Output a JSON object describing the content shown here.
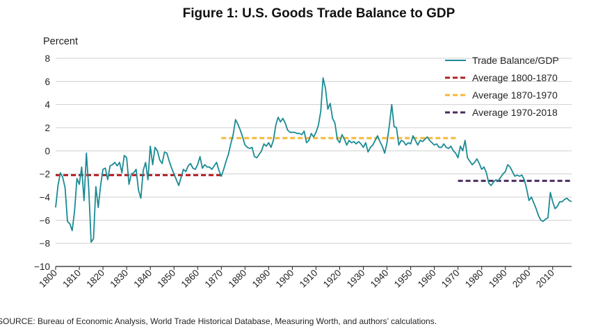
{
  "chart_data": {
    "type": "line",
    "title": "Figure 1: U.S. Goods Trade Balance to GDP",
    "ylabel": "Percent",
    "xlabel": "",
    "ylim": [
      -10,
      8
    ],
    "xlim": [
      1800,
      2018
    ],
    "y_ticks": [
      "8",
      "6",
      "4",
      "2",
      "0",
      "−2",
      "−4",
      "−6",
      "−8",
      "−10"
    ],
    "y_tick_values": [
      8,
      6,
      4,
      2,
      0,
      -2,
      -4,
      -6,
      -8,
      -10
    ],
    "x_ticks": [
      "1800",
      "1810",
      "1820",
      "1830",
      "1840",
      "1850",
      "1860",
      "1870",
      "1880",
      "1890",
      "1900",
      "1910",
      "1920",
      "1930",
      "1940",
      "1950",
      "1960",
      "1970",
      "1980",
      "1990",
      "2000",
      "2010"
    ],
    "x_tick_values": [
      1800,
      1810,
      1820,
      1830,
      1840,
      1850,
      1860,
      1870,
      1880,
      1890,
      1900,
      1910,
      1920,
      1930,
      1940,
      1950,
      1960,
      1970,
      1980,
      1990,
      2000,
      2010
    ],
    "grid": "horizontal",
    "legend_position": "top-right",
    "series": [
      {
        "name": "Trade Balance/GDP",
        "color": "#1a8a93",
        "style": "solid",
        "points": [
          [
            1800,
            -4.9
          ],
          [
            1801,
            -3.0
          ],
          [
            1802,
            -1.9
          ],
          [
            1803,
            -2.3
          ],
          [
            1804,
            -3.2
          ],
          [
            1805,
            -6.1
          ],
          [
            1806,
            -6.3
          ],
          [
            1807,
            -6.9
          ],
          [
            1808,
            -5.2
          ],
          [
            1809,
            -2.4
          ],
          [
            1810,
            -2.9
          ],
          [
            1811,
            -1.4
          ],
          [
            1812,
            -4.3
          ],
          [
            1813,
            -0.2
          ],
          [
            1814,
            -3.3
          ],
          [
            1815,
            -7.9
          ],
          [
            1816,
            -7.6
          ],
          [
            1817,
            -3.1
          ],
          [
            1818,
            -4.9
          ],
          [
            1819,
            -3.0
          ],
          [
            1820,
            -1.6
          ],
          [
            1821,
            -1.5
          ],
          [
            1822,
            -2.5
          ],
          [
            1823,
            -1.3
          ],
          [
            1824,
            -1.2
          ],
          [
            1825,
            -1.0
          ],
          [
            1826,
            -1.3
          ],
          [
            1827,
            -1.0
          ],
          [
            1828,
            -1.9
          ],
          [
            1829,
            -0.4
          ],
          [
            1830,
            -0.6
          ],
          [
            1831,
            -2.9
          ],
          [
            1832,
            -2.0
          ],
          [
            1833,
            -1.9
          ],
          [
            1834,
            -1.6
          ],
          [
            1835,
            -3.4
          ],
          [
            1836,
            -4.1
          ],
          [
            1837,
            -1.7
          ],
          [
            1838,
            -1.0
          ],
          [
            1839,
            -2.5
          ],
          [
            1840,
            0.4
          ],
          [
            1841,
            -1.2
          ],
          [
            1842,
            0.3
          ],
          [
            1843,
            0.0
          ],
          [
            1844,
            -0.8
          ],
          [
            1845,
            -1.1
          ],
          [
            1846,
            -0.1
          ],
          [
            1847,
            -0.2
          ],
          [
            1848,
            -0.9
          ],
          [
            1849,
            -1.5
          ],
          [
            1850,
            -2.0
          ],
          [
            1851,
            -2.5
          ],
          [
            1852,
            -3.0
          ],
          [
            1853,
            -2.3
          ],
          [
            1854,
            -1.6
          ],
          [
            1855,
            -1.8
          ],
          [
            1856,
            -1.3
          ],
          [
            1857,
            -1.1
          ],
          [
            1858,
            -1.5
          ],
          [
            1859,
            -1.6
          ],
          [
            1860,
            -1.2
          ],
          [
            1861,
            -0.5
          ],
          [
            1862,
            -1.5
          ],
          [
            1863,
            -1.2
          ],
          [
            1864,
            -1.4
          ],
          [
            1865,
            -1.4
          ],
          [
            1866,
            -1.6
          ],
          [
            1867,
            -1.3
          ],
          [
            1868,
            -1.0
          ],
          [
            1869,
            -1.7
          ],
          [
            1870,
            -2.2
          ],
          [
            1871,
            -1.6
          ],
          [
            1872,
            -0.9
          ],
          [
            1873,
            -0.3
          ],
          [
            1874,
            0.6
          ],
          [
            1875,
            1.4
          ],
          [
            1876,
            2.7
          ],
          [
            1877,
            2.3
          ],
          [
            1878,
            1.8
          ],
          [
            1879,
            1.2
          ],
          [
            1880,
            0.5
          ],
          [
            1881,
            0.3
          ],
          [
            1882,
            0.2
          ],
          [
            1883,
            0.3
          ],
          [
            1884,
            -0.5
          ],
          [
            1885,
            -0.6
          ],
          [
            1886,
            -0.3
          ],
          [
            1887,
            0.0
          ],
          [
            1888,
            0.6
          ],
          [
            1889,
            0.4
          ],
          [
            1890,
            0.7
          ],
          [
            1891,
            0.3
          ],
          [
            1892,
            0.9
          ],
          [
            1893,
            2.2
          ],
          [
            1894,
            2.9
          ],
          [
            1895,
            2.5
          ],
          [
            1896,
            2.8
          ],
          [
            1897,
            2.4
          ],
          [
            1898,
            1.8
          ],
          [
            1899,
            1.6
          ],
          [
            1900,
            1.6
          ],
          [
            1901,
            1.6
          ],
          [
            1902,
            1.5
          ],
          [
            1903,
            1.5
          ],
          [
            1904,
            1.4
          ],
          [
            1905,
            1.7
          ],
          [
            1906,
            0.7
          ],
          [
            1907,
            0.9
          ],
          [
            1908,
            1.5
          ],
          [
            1909,
            1.2
          ],
          [
            1910,
            1.6
          ],
          [
            1911,
            2.2
          ],
          [
            1912,
            3.4
          ],
          [
            1913,
            6.3
          ],
          [
            1914,
            5.4
          ],
          [
            1915,
            3.6
          ],
          [
            1916,
            4.1
          ],
          [
            1917,
            2.8
          ],
          [
            1918,
            2.4
          ],
          [
            1919,
            1.0
          ],
          [
            1920,
            0.7
          ],
          [
            1921,
            1.4
          ],
          [
            1922,
            1.0
          ],
          [
            1923,
            0.5
          ],
          [
            1924,
            0.9
          ],
          [
            1925,
            0.7
          ],
          [
            1926,
            0.8
          ],
          [
            1927,
            0.6
          ],
          [
            1928,
            0.8
          ],
          [
            1929,
            0.6
          ],
          [
            1930,
            0.3
          ],
          [
            1931,
            0.7
          ],
          [
            1932,
            -0.1
          ],
          [
            1933,
            0.3
          ],
          [
            1934,
            0.5
          ],
          [
            1935,
            0.9
          ],
          [
            1936,
            1.3
          ],
          [
            1937,
            0.8
          ],
          [
            1938,
            0.4
          ],
          [
            1939,
            -0.2
          ],
          [
            1940,
            0.7
          ],
          [
            1941,
            2.2
          ],
          [
            1942,
            4.0
          ],
          [
            1943,
            2.1
          ],
          [
            1944,
            2.0
          ],
          [
            1945,
            0.5
          ],
          [
            1946,
            0.9
          ],
          [
            1947,
            0.8
          ],
          [
            1948,
            0.5
          ],
          [
            1949,
            0.7
          ],
          [
            1950,
            0.6
          ],
          [
            1951,
            1.3
          ],
          [
            1952,
            0.9
          ],
          [
            1953,
            0.5
          ],
          [
            1954,
            0.9
          ],
          [
            1955,
            0.8
          ],
          [
            1956,
            1.0
          ],
          [
            1957,
            1.2
          ],
          [
            1958,
            0.9
          ],
          [
            1959,
            0.7
          ],
          [
            1960,
            0.5
          ],
          [
            1961,
            0.6
          ],
          [
            1962,
            0.3
          ],
          [
            1963,
            0.3
          ],
          [
            1964,
            0.6
          ],
          [
            1965,
            0.3
          ],
          [
            1966,
            0.2
          ],
          [
            1967,
            0.4
          ],
          [
            1968,
            0.0
          ],
          [
            1969,
            -0.2
          ],
          [
            1970,
            -0.6
          ],
          [
            1971,
            0.4
          ],
          [
            1972,
            0.0
          ],
          [
            1973,
            0.9
          ],
          [
            1974,
            -0.6
          ],
          [
            1975,
            -0.9
          ],
          [
            1976,
            -1.2
          ],
          [
            1977,
            -1.0
          ],
          [
            1978,
            -0.7
          ],
          [
            1979,
            -1.1
          ],
          [
            1980,
            -1.6
          ],
          [
            1981,
            -1.4
          ],
          [
            1982,
            -1.9
          ],
          [
            1983,
            -2.8
          ],
          [
            1984,
            -3.0
          ],
          [
            1985,
            -2.7
          ],
          [
            1986,
            -2.5
          ],
          [
            1987,
            -2.6
          ],
          [
            1988,
            -2.3
          ],
          [
            1989,
            -2.0
          ],
          [
            1990,
            -1.8
          ],
          [
            1991,
            -1.2
          ],
          [
            1992,
            -1.4
          ],
          [
            1993,
            -1.8
          ],
          [
            1994,
            -2.2
          ],
          [
            1995,
            -2.1
          ],
          [
            1996,
            -2.2
          ],
          [
            1997,
            -2.1
          ],
          [
            1998,
            -2.5
          ],
          [
            1999,
            -3.3
          ],
          [
            2000,
            -4.3
          ],
          [
            2001,
            -4.0
          ],
          [
            2002,
            -4.5
          ],
          [
            2003,
            -5.0
          ],
          [
            2004,
            -5.6
          ],
          [
            2005,
            -6.0
          ],
          [
            2006,
            -6.1
          ],
          [
            2007,
            -5.9
          ],
          [
            2008,
            -5.8
          ],
          [
            2009,
            -3.6
          ],
          [
            2010,
            -4.4
          ],
          [
            2011,
            -5.0
          ],
          [
            2012,
            -4.8
          ],
          [
            2013,
            -4.4
          ],
          [
            2014,
            -4.4
          ],
          [
            2015,
            -4.2
          ],
          [
            2016,
            -4.1
          ],
          [
            2017,
            -4.3
          ],
          [
            2018,
            -4.4
          ]
        ]
      },
      {
        "name": "Average 1800-1870",
        "color": "#b51f24",
        "style": "dashed",
        "points": [
          [
            1800,
            -2.1
          ],
          [
            1870,
            -2.1
          ]
        ]
      },
      {
        "name": "Average 1870-1970",
        "color": "#f7b733",
        "style": "dashed",
        "points": [
          [
            1870,
            1.1
          ],
          [
            1970,
            1.1
          ]
        ]
      },
      {
        "name": "Average 1970-2018",
        "color": "#4a2a5e",
        "style": "dashed",
        "points": [
          [
            1970,
            -2.6
          ],
          [
            2018,
            -2.6
          ]
        ]
      }
    ]
  },
  "source_note": "SOURCE: Bureau of Economic Analysis, World Trade Historical Database, Measuring Worth, and authors’ calculations."
}
